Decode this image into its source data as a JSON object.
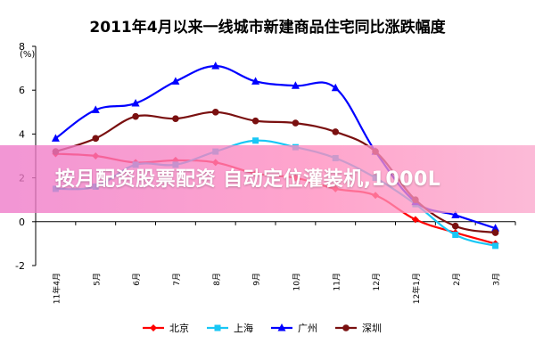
{
  "chart_data": {
    "type": "line",
    "title": "2011年4月以来一线城市新建商品住宅同比涨跌幅度",
    "yunit": "(%)",
    "categories": [
      "11年4月",
      "5月",
      "6月",
      "7月",
      "8月",
      "9月",
      "10月",
      "11月",
      "12月",
      "12年1月",
      "2月",
      "3月"
    ],
    "ylim": [
      -2,
      8
    ],
    "yticks": [
      -2,
      0,
      2,
      4,
      6,
      8
    ],
    "grid": false,
    "legend_position": "bottom",
    "series": [
      {
        "name": "北京",
        "color": "#ff0000",
        "marker": "diamond",
        "values": [
          3.1,
          3.0,
          2.7,
          2.8,
          2.7,
          2.2,
          2.0,
          1.5,
          1.2,
          0.1,
          -0.5,
          -1.0
        ]
      },
      {
        "name": "上海",
        "color": "#19c7f5",
        "marker": "square",
        "values": [
          1.5,
          1.6,
          2.6,
          2.6,
          3.2,
          3.7,
          3.4,
          2.9,
          2.0,
          0.8,
          -0.6,
          -1.1
        ]
      },
      {
        "name": "广州",
        "color": "#0000ff",
        "marker": "triangle",
        "values": [
          3.8,
          5.1,
          5.4,
          6.4,
          7.1,
          6.4,
          6.2,
          6.1,
          3.2,
          0.9,
          0.3,
          -0.3
        ]
      },
      {
        "name": "深圳",
        "color": "#7a1010",
        "marker": "circle",
        "values": [
          3.2,
          3.8,
          4.8,
          4.7,
          5.0,
          4.6,
          4.5,
          4.1,
          3.2,
          1.0,
          -0.2,
          -0.5
        ]
      }
    ]
  },
  "overlay": {
    "banner_text": "按月配资股票配资 自动定位灌装机,1000L"
  }
}
